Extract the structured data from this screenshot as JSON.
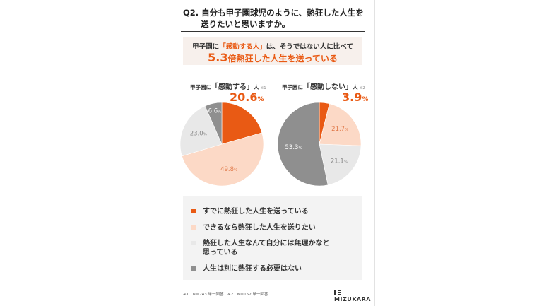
{
  "question": {
    "line1": "Q2. 自分も甲子園球児のように、熱狂した人生を",
    "line2": "送りたいと思いますか。"
  },
  "banner": {
    "line1_prefix": "甲子園に",
    "line1_highlight": "「感動する人」",
    "line1_suffix": "は、そうではない人に比べて",
    "line2_number": "5.3",
    "line2_text": "倍熱狂した人生を送っている"
  },
  "colors": {
    "already": "#e95a14",
    "want": "#fcd9c6",
    "impossible": "#e8e8e8",
    "unnecessary": "#8f8f8f"
  },
  "chart_data": [
    {
      "type": "pie",
      "title_prefix": "甲子園に",
      "title_main": "「感動する」",
      "title_suffix": "人",
      "title_note": "※1",
      "categories": [
        "すでに熱狂した人生を送っている",
        "できるなら熱狂した人生を送りたい",
        "熱狂した人生なんて自分には無理かなと思っている",
        "人生は別に熱狂する必要はない"
      ],
      "values": [
        20.6,
        49.8,
        23.0,
        6.6
      ],
      "labels": [
        "20.6",
        "49.8",
        "23.0",
        "6.6"
      ],
      "pct_sign": "%"
    },
    {
      "type": "pie",
      "title_prefix": "甲子園に",
      "title_main": "「感動しない」",
      "title_suffix": "人",
      "title_note": "※2",
      "categories": [
        "すでに熱狂した人生を送っている",
        "できるなら熱狂した人生を送りたい",
        "熱狂した人生なんて自分には無理かなと思っている",
        "人生は別に熱狂する必要はない"
      ],
      "values": [
        3.9,
        21.7,
        21.1,
        53.3
      ],
      "labels": [
        "3.9",
        "21.7",
        "21.1",
        "53.3"
      ],
      "pct_sign": "%"
    }
  ],
  "legend": {
    "items": [
      {
        "line1": "すでに熱狂した人生を送っている",
        "line2": ""
      },
      {
        "line1": "できるなら熱狂した人生を送りたい",
        "line2": ""
      },
      {
        "line1": "熱狂した人生なんて自分には無理かなと",
        "line2": "思っている"
      },
      {
        "line1": "人生は別に熱狂する必要はない",
        "line2": ""
      }
    ]
  },
  "footnote": "※1　N＝243 単一回答　※2　N＝152 単一回答",
  "logo": "MIZUKARA"
}
